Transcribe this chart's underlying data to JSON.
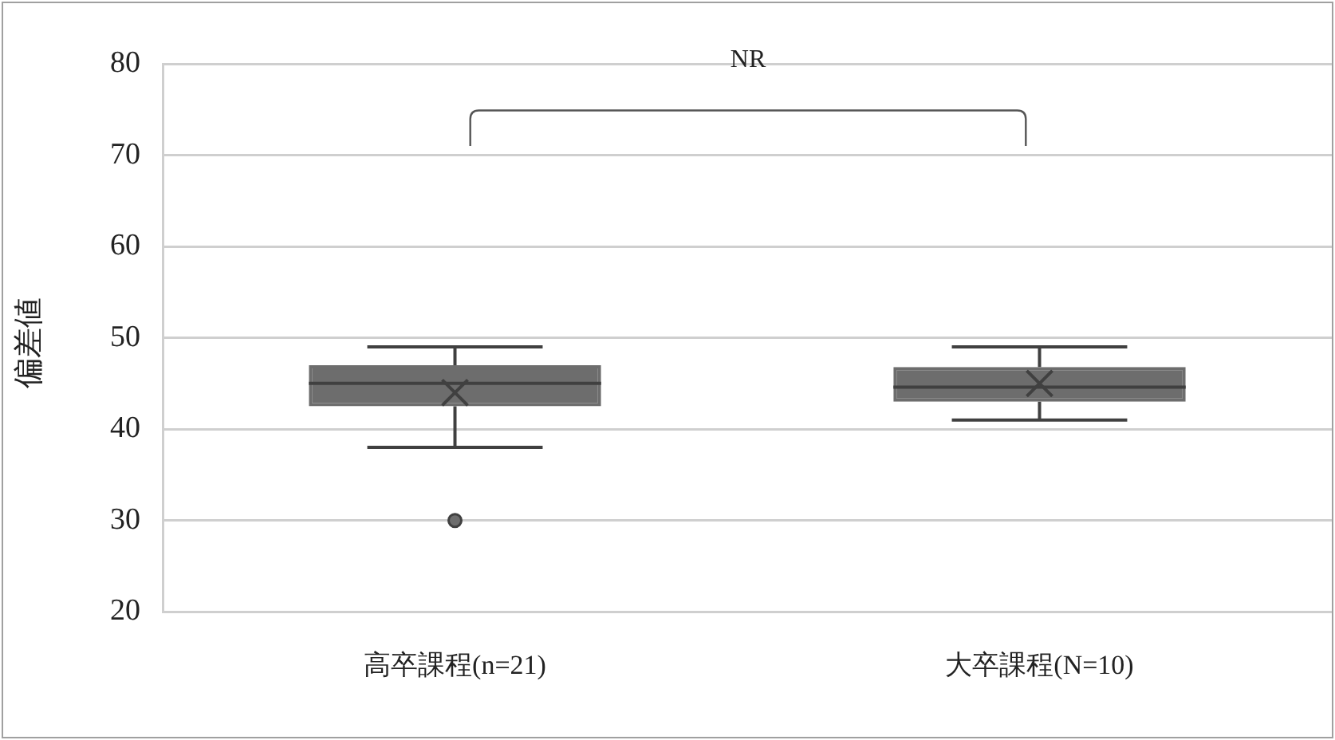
{
  "chart_data": {
    "type": "box",
    "ylabel": "偏差値",
    "categories": [
      "高卒課程(n=21)",
      "大卒課程(N=10)"
    ],
    "boxes": [
      {
        "low": 38,
        "q1": 42.5,
        "median": 45,
        "q3": 47,
        "high": 49,
        "mean": 44,
        "outliers": [
          30
        ]
      },
      {
        "low": 41,
        "q1": 43,
        "median": 44.6,
        "q3": 46.8,
        "high": 49,
        "mean": 45
      }
    ],
    "color": "#6d6d6d",
    "ylim": [
      20,
      80
    ],
    "yticks": [
      20,
      30,
      40,
      50,
      60,
      70,
      80
    ],
    "grid": "y",
    "legend": false,
    "annotations": [
      "NR"
    ]
  }
}
